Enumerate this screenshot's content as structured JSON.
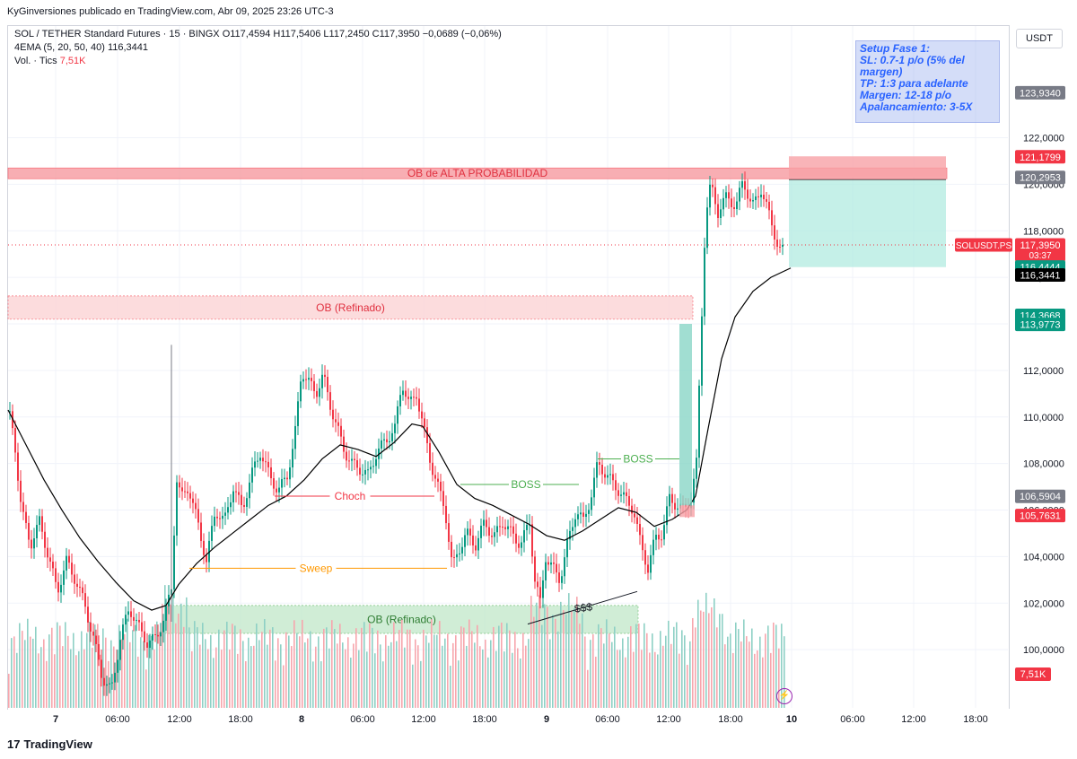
{
  "publisher": "KyGinversiones publicado en TradingView.com, Abr 09, 2025 23:26 UTC-3",
  "legend": {
    "symbol_line": "SOL / TETHER Standard Futures · 15 · BINGX  O117,4594  H117,5406  L117,2450  C117,3950  −0,0689 (−0,06%)",
    "ema_label": "4EMA (5, 20, 50, 40)",
    "ema_value": "116,3441",
    "vol_label": "Vol. · Tics",
    "vol_value": "7,51K"
  },
  "currency": "USDT",
  "setup_note": {
    "lines": [
      "Setup Fase 1:",
      "SL: 0.7-1 p/o (5% del margen)",
      "TP: 1:3 para adelante",
      "Margen: 12-18 p/o",
      "Apalancamiento: 3-5X"
    ]
  },
  "footer": "TradingView",
  "colors": {
    "up": "#089981",
    "down": "#f23645",
    "ema": "#000000",
    "zone_red": "#f7a1a6",
    "zone_red_light": "#fcd6d8",
    "zone_green": "#c8eacf",
    "teal_box": "#b2ebe0",
    "annotation_green": "#4caf50",
    "annotation_red": "#f23645",
    "annotation_orange": "#ff9800"
  },
  "chart_data": {
    "type": "candlestick",
    "ylim": [
      97.5,
      126.8
    ],
    "y_ticks": [
      100,
      102,
      104,
      106,
      108,
      110,
      112,
      114,
      116,
      118,
      120,
      122
    ],
    "y_tick_labels": [
      "100,0000",
      "102,0000",
      "104,0000",
      "106,0000",
      "108,0000",
      "110,0000",
      "112,0000",
      "114,0000",
      "116,0000",
      "118,0000",
      "120,0000",
      "122,0000"
    ],
    "x_ticks": [
      "7",
      "06:00",
      "12:00",
      "18:00",
      "8",
      "06:00",
      "12:00",
      "18:00",
      "9",
      "06:00",
      "12:00",
      "18:00",
      "10",
      "06:00",
      "12:00",
      "18:00"
    ],
    "price_path": [
      [
        0,
        110.2
      ],
      [
        6,
        109
      ],
      [
        14,
        106
      ],
      [
        24,
        104.5
      ],
      [
        34,
        105.5
      ],
      [
        44,
        104
      ],
      [
        54,
        102.5
      ],
      [
        64,
        103.8
      ],
      [
        74,
        103
      ],
      [
        84,
        102
      ],
      [
        94,
        100.5
      ],
      [
        104,
        98.8
      ],
      [
        114,
        98.2
      ],
      [
        124,
        100.5
      ],
      [
        134,
        101.8
      ],
      [
        144,
        101
      ],
      [
        154,
        100.3
      ],
      [
        164,
        100.5
      ],
      [
        174,
        101.5
      ],
      [
        182,
        102.8
      ],
      [
        186,
        107.5
      ],
      [
        192,
        106.5
      ],
      [
        200,
        107
      ],
      [
        210,
        105.5
      ],
      [
        220,
        103.8
      ],
      [
        230,
        106
      ],
      [
        240,
        105.5
      ],
      [
        250,
        107
      ],
      [
        260,
        106
      ],
      [
        270,
        107.5
      ],
      [
        280,
        108.5
      ],
      [
        290,
        107.5
      ],
      [
        300,
        106.8
      ],
      [
        310,
        107.5
      ],
      [
        318,
        109
      ],
      [
        326,
        112
      ],
      [
        334,
        111.5
      ],
      [
        342,
        111
      ],
      [
        350,
        111.8
      ],
      [
        358,
        110.5
      ],
      [
        366,
        109.5
      ],
      [
        374,
        108.5
      ],
      [
        382,
        108
      ],
      [
        390,
        107.8
      ],
      [
        400,
        107.5
      ],
      [
        410,
        108.5
      ],
      [
        420,
        109
      ],
      [
        430,
        109.5
      ],
      [
        438,
        111.5
      ],
      [
        446,
        110.5
      ],
      [
        454,
        111
      ],
      [
        462,
        109.5
      ],
      [
        470,
        108
      ],
      [
        478,
        107
      ],
      [
        486,
        106
      ],
      [
        494,
        103.5
      ],
      [
        500,
        104.2
      ],
      [
        510,
        105
      ],
      [
        520,
        104.5
      ],
      [
        530,
        105.5
      ],
      [
        540,
        104.8
      ],
      [
        550,
        105.5
      ],
      [
        560,
        105
      ],
      [
        570,
        104.5
      ],
      [
        580,
        105.5
      ],
      [
        586,
        103
      ],
      [
        592,
        102
      ],
      [
        598,
        104
      ],
      [
        606,
        103.5
      ],
      [
        614,
        103
      ],
      [
        622,
        104.5
      ],
      [
        632,
        106
      ],
      [
        640,
        105.5
      ],
      [
        648,
        106.5
      ],
      [
        656,
        108
      ],
      [
        666,
        107.5
      ],
      [
        676,
        107
      ],
      [
        686,
        106.5
      ],
      [
        696,
        106
      ],
      [
        704,
        104.5
      ],
      [
        712,
        103.5
      ],
      [
        720,
        104.8
      ],
      [
        728,
        105
      ],
      [
        736,
        106.5
      ],
      [
        744,
        106.2
      ],
      [
        752,
        106
      ],
      [
        760,
        106.5
      ],
      [
        766,
        108
      ],
      [
        772,
        114.5
      ],
      [
        776,
        118.5
      ],
      [
        782,
        120
      ],
      [
        790,
        118.8
      ],
      [
        800,
        119.5
      ],
      [
        810,
        119
      ],
      [
        818,
        120.2
      ],
      [
        828,
        119
      ],
      [
        838,
        119.8
      ],
      [
        846,
        118.8
      ],
      [
        852,
        118
      ],
      [
        858,
        117.2
      ],
      [
        866,
        117.1
      ],
      [
        872,
        117.4
      ]
    ],
    "ema_path": [
      [
        0,
        110.3
      ],
      [
        20,
        108.8
      ],
      [
        40,
        107.3
      ],
      [
        60,
        106
      ],
      [
        80,
        104.8
      ],
      [
        100,
        103.8
      ],
      [
        120,
        102.9
      ],
      [
        140,
        102.1
      ],
      [
        160,
        101.7
      ],
      [
        176,
        101.9
      ],
      [
        190,
        102.8
      ],
      [
        210,
        103.7
      ],
      [
        230,
        104.4
      ],
      [
        250,
        105
      ],
      [
        270,
        105.6
      ],
      [
        290,
        106.2
      ],
      [
        310,
        106.6
      ],
      [
        330,
        107.3
      ],
      [
        350,
        108.2
      ],
      [
        370,
        108.8
      ],
      [
        390,
        108.6
      ],
      [
        410,
        108.3
      ],
      [
        430,
        108.9
      ],
      [
        450,
        109.7
      ],
      [
        462,
        109.6
      ],
      [
        480,
        108.5
      ],
      [
        500,
        107.1
      ],
      [
        520,
        106.5
      ],
      [
        540,
        106.2
      ],
      [
        560,
        105.8
      ],
      [
        580,
        105.4
      ],
      [
        600,
        104.9
      ],
      [
        620,
        104.7
      ],
      [
        640,
        105.1
      ],
      [
        660,
        105.6
      ],
      [
        680,
        106.1
      ],
      [
        700,
        105.9
      ],
      [
        720,
        105.3
      ],
      [
        740,
        105.6
      ],
      [
        756,
        106
      ],
      [
        766,
        106.6
      ],
      [
        780,
        109.5
      ],
      [
        795,
        112.5
      ],
      [
        810,
        114.3
      ],
      [
        830,
        115.4
      ],
      [
        850,
        116
      ],
      [
        872,
        116.4
      ]
    ],
    "zones": [
      {
        "label": "OB de ALTA PROBABILIDAD",
        "y_top": 120.7,
        "y_bottom": 120.25,
        "type": "red"
      },
      {
        "label": "OB (Refinado)",
        "y_top": 115.2,
        "y_bottom": 114.2,
        "type": "red_light"
      },
      {
        "label": "OB (Refinado)",
        "y_top": 101.9,
        "y_bottom": 100.7,
        "type": "green"
      }
    ],
    "annotations": [
      {
        "label": "BOSS",
        "y": 107.1,
        "color": "green"
      },
      {
        "label": "BOSS",
        "y": 108.2,
        "color": "green"
      },
      {
        "label": "Choch",
        "y": 106.6,
        "color": "red"
      },
      {
        "label": "Sweep",
        "y": 103.5,
        "color": "orange"
      },
      {
        "label": "$$$",
        "y": 102.1,
        "color": "black"
      }
    ],
    "position": {
      "entry": 117.2,
      "tp_top": 120.2,
      "tp_bottom": 116.44,
      "sl_top": 121.2,
      "sl_bottom": 120.3
    },
    "price_labels": [
      {
        "value": "123,9340",
        "y": 123.934,
        "color": "#787b86"
      },
      {
        "value": "121,1799",
        "y": 121.18,
        "color": "#f23645"
      },
      {
        "value": "120,2953",
        "y": 120.2953,
        "color": "#787b86"
      },
      {
        "value": "117,3950",
        "y": 117.395,
        "color": "#f23645",
        "extra": "03:37"
      },
      {
        "value": "116,4444",
        "y": 116.4444,
        "color": "#089981"
      },
      {
        "value": "116,3441",
        "y": 116.1,
        "color": "#000000"
      },
      {
        "value": "114,3668",
        "y": 114.3668,
        "color": "#089981"
      },
      {
        "value": "113,9773",
        "y": 113.9773,
        "color": "#089981"
      },
      {
        "value": "106,5904",
        "y": 106.5904,
        "color": "#787b86"
      },
      {
        "value": "105,7631",
        "y": 105.7631,
        "color": "#f23645"
      }
    ],
    "symbol_tag": "SOLUSDT.PS",
    "volume_label": "7,51K"
  }
}
